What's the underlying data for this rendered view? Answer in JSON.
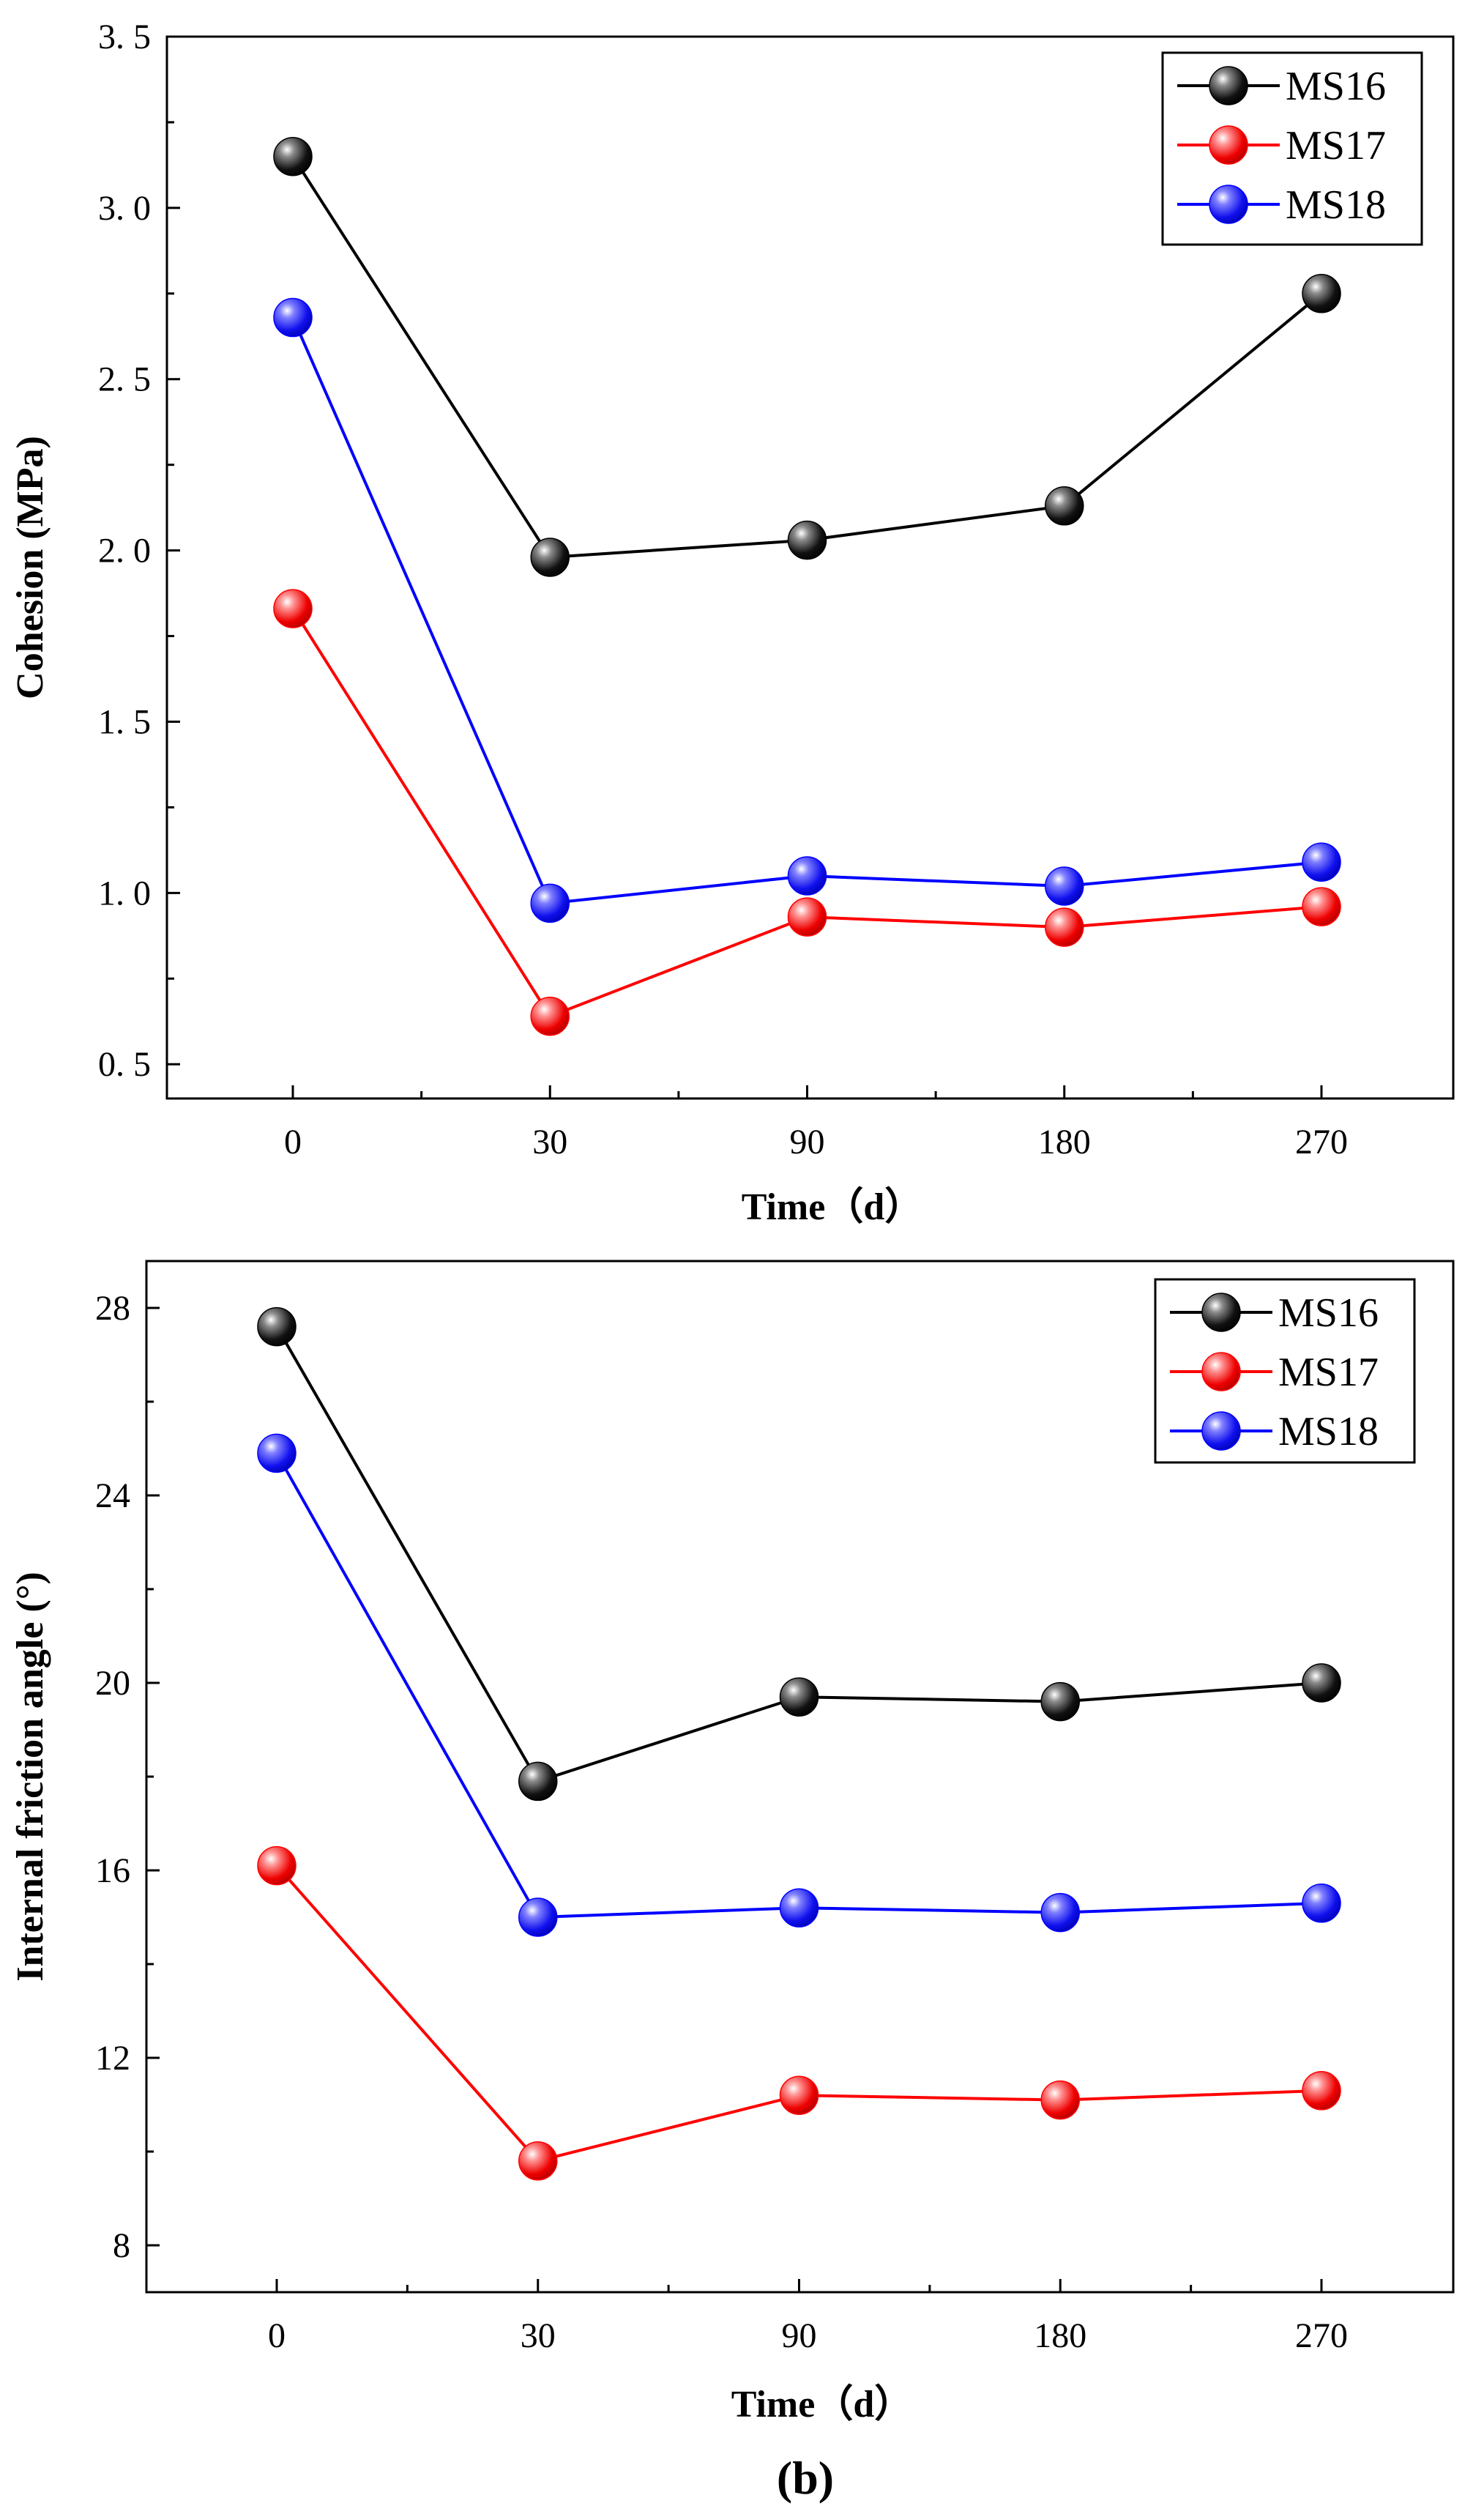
{
  "panel_label": "(b)",
  "chart_data": [
    {
      "type": "line",
      "title": "",
      "xlabel": "Time（d）",
      "ylabel": "Cohesion (MPa)",
      "categories": [
        "0",
        "30",
        "90",
        "180",
        "270"
      ],
      "ylim": [
        0.4,
        3.5
      ],
      "yticks": [
        0.5,
        1.0,
        1.5,
        2.0,
        2.5,
        3.0,
        3.5
      ],
      "ytick_labels": [
        "0. 5",
        "1. 0",
        "1. 5",
        "2. 0",
        "2. 5",
        "3. 0",
        "3. 5"
      ],
      "legend_position": "top-right",
      "grid": false,
      "series": [
        {
          "name": "MS16",
          "color": "#000000",
          "values": [
            3.15,
            1.98,
            2.03,
            2.13,
            2.75
          ]
        },
        {
          "name": "MS17",
          "color": "#ff0000",
          "values": [
            1.83,
            0.64,
            0.93,
            0.9,
            0.96
          ]
        },
        {
          "name": "MS18",
          "color": "#0000ff",
          "values": [
            2.68,
            0.97,
            1.05,
            1.02,
            1.09
          ]
        }
      ]
    },
    {
      "type": "line",
      "title": "",
      "xlabel": "Time（d）",
      "ylabel": "Internal friction angle (°)",
      "categories": [
        "0",
        "30",
        "90",
        "180",
        "270"
      ],
      "ylim": [
        7.0,
        29.0
      ],
      "yticks": [
        8,
        12,
        16,
        20,
        24,
        28
      ],
      "ytick_labels": [
        "8",
        "12",
        "16",
        "20",
        "24",
        "28"
      ],
      "legend_position": "top-right",
      "grid": false,
      "series": [
        {
          "name": "MS16",
          "color": "#000000",
          "values": [
            27.6,
            17.9,
            19.7,
            19.6,
            20.0
          ]
        },
        {
          "name": "MS17",
          "color": "#ff0000",
          "values": [
            16.1,
            9.8,
            11.2,
            11.1,
            11.3
          ]
        },
        {
          "name": "MS18",
          "color": "#0000ff",
          "values": [
            24.9,
            15.0,
            15.2,
            15.1,
            15.3
          ]
        }
      ]
    }
  ]
}
